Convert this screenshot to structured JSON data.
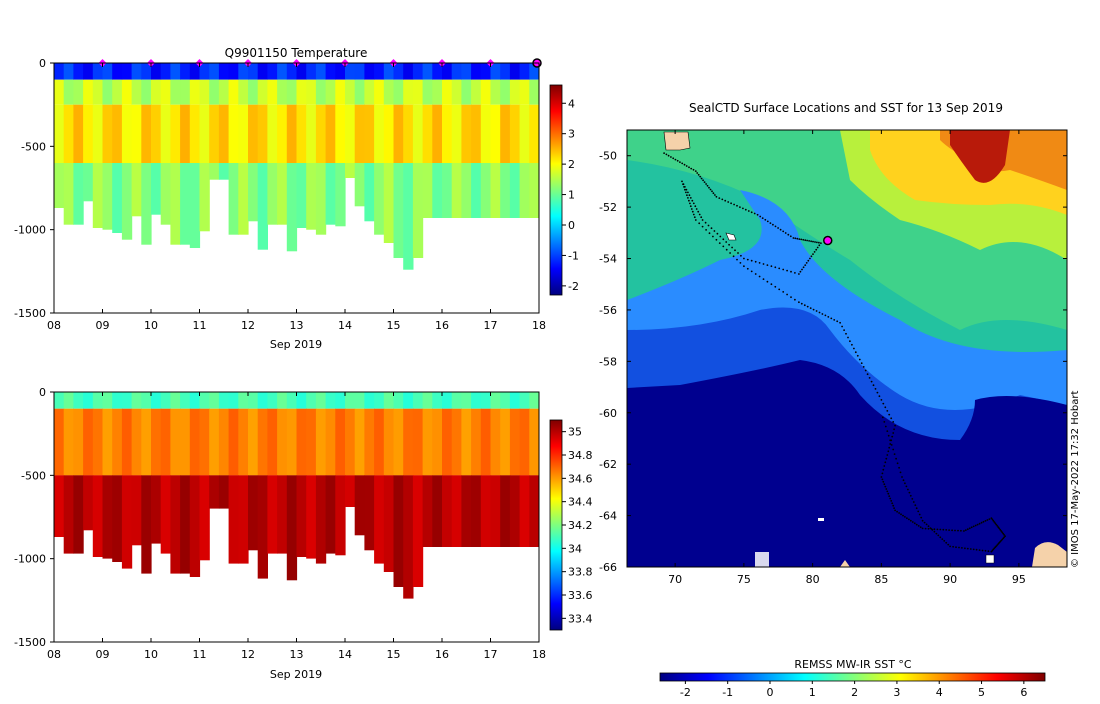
{
  "chart_data": [
    {
      "type": "heatmap",
      "title": "Q9901150  Temperature",
      "xlabel": "Sep 2019",
      "ylabel": "",
      "x_ticks": [
        "08",
        "09",
        "10",
        "11",
        "12",
        "13",
        "14",
        "15",
        "16",
        "17",
        "18"
      ],
      "x_range": [
        8,
        18
      ],
      "y_ticks": [
        "0",
        "-500",
        "-1000",
        "-1500"
      ],
      "ylim": [
        -1500,
        0
      ],
      "colorbar": {
        "ticks": [
          "4",
          "3",
          "2",
          "1",
          "0",
          "-1",
          "-2"
        ],
        "range": [
          -2.3,
          4.6
        ]
      },
      "profile_markers_day": [
        9,
        10,
        11,
        12,
        13,
        14,
        15,
        16,
        17
      ],
      "current_position_day": 18,
      "profile_days": [
        8.0,
        8.2,
        8.4,
        8.6,
        8.8,
        9.0,
        9.2,
        9.4,
        9.6,
        9.8,
        10.0,
        10.2,
        10.4,
        10.6,
        10.8,
        11.0,
        11.2,
        11.4,
        11.6,
        11.8,
        12.0,
        12.2,
        12.4,
        12.6,
        12.8,
        13.0,
        13.2,
        13.4,
        13.6,
        13.8,
        14.0,
        14.2,
        14.4,
        14.6,
        14.8,
        15.0,
        15.2,
        15.4,
        15.6,
        15.8,
        16.0,
        16.2,
        16.4,
        16.6,
        16.8,
        17.0,
        17.2,
        17.4,
        17.6,
        17.8
      ],
      "max_depth_m": [
        -870,
        -970,
        -970,
        -830,
        -990,
        -1000,
        -1020,
        -1060,
        -920,
        -1090,
        -910,
        -970,
        -1090,
        -1090,
        -1110,
        -1010,
        -700,
        -700,
        -1030,
        -1030,
        -950,
        -1120,
        -970,
        -970,
        -1130,
        -990,
        -1000,
        -1030,
        -970,
        -980,
        -690,
        -860,
        -950,
        -1030,
        -1080,
        -1170,
        -1240,
        -1170,
        -930,
        -930,
        -930,
        -930,
        -930,
        -930,
        -930,
        -930,
        -930,
        -930,
        -930,
        -930
      ],
      "value_unit": "°C",
      "layers": [
        {
          "depth_top": 0,
          "depth_bottom": -100,
          "value": -1.2
        },
        {
          "depth_top": -100,
          "depth_bottom": -250,
          "value": 1.6
        },
        {
          "depth_top": -250,
          "depth_bottom": -600,
          "value": 2.2
        },
        {
          "depth_top": -600,
          "depth_bottom": -1250,
          "value": 1.2
        }
      ]
    },
    {
      "type": "heatmap",
      "title": "",
      "xlabel": "Sep 2019",
      "ylabel": "",
      "x_ticks": [
        "08",
        "09",
        "10",
        "11",
        "12",
        "13",
        "14",
        "15",
        "16",
        "17",
        "18"
      ],
      "x_range": [
        8,
        18
      ],
      "y_ticks": [
        "0",
        "-500",
        "-1000",
        "-1500"
      ],
      "ylim": [
        -1500,
        0
      ],
      "colorbar": {
        "ticks": [
          "35",
          "34.8",
          "34.6",
          "34.4",
          "34.2",
          "34",
          "33.8",
          "33.6",
          "33.4"
        ],
        "range": [
          33.3,
          35.1
        ]
      },
      "layers": [
        {
          "depth_top": 0,
          "depth_bottom": -100,
          "value": 34.1
        },
        {
          "depth_top": -100,
          "depth_bottom": -500,
          "value": 34.65
        },
        {
          "depth_top": -500,
          "depth_bottom": -1250,
          "value": 35.0
        }
      ]
    },
    {
      "type": "map",
      "title": "SealCTD Surface Locations and SST for 13 Sep 2019",
      "lon_ticks": [
        "70",
        "75",
        "80",
        "85",
        "90",
        "95"
      ],
      "lon_range": [
        66.5,
        98.5
      ],
      "lat_ticks": [
        "-50",
        "-52",
        "-54",
        "-56",
        "-58",
        "-60",
        "-62",
        "-64",
        "-66"
      ],
      "lat_range": [
        -66,
        -49
      ],
      "current_position": {
        "lon": 81.1,
        "lat": -53.3
      },
      "track": [
        [
          69.2,
          -49.9
        ],
        [
          71.5,
          -50.6
        ],
        [
          73,
          -51.6
        ],
        [
          76,
          -52.3
        ],
        [
          78.6,
          -53.2
        ],
        [
          80.6,
          -53.4
        ],
        [
          79,
          -54.6
        ],
        [
          75,
          -54
        ],
        [
          72,
          -52.5
        ],
        [
          70.5,
          -51
        ],
        [
          71.5,
          -52.5
        ],
        [
          75,
          -54.3
        ],
        [
          79,
          -55.7
        ],
        [
          82,
          -56.5
        ],
        [
          84,
          -58.5
        ],
        [
          86,
          -60.5
        ],
        [
          85,
          -62.5
        ],
        [
          86,
          -63.8
        ],
        [
          88,
          -64.5
        ],
        [
          91,
          -64.6
        ],
        [
          93,
          -64.1
        ],
        [
          94,
          -64.8
        ],
        [
          93,
          -65.4
        ],
        [
          90,
          -65.2
        ],
        [
          88,
          -64.2
        ],
        [
          86.5,
          -62.5
        ],
        [
          85,
          -60
        ]
      ],
      "colorbar": {
        "label": "REMSS MW-IR SST °C",
        "ticks": [
          "-2",
          "-1",
          "0",
          "1",
          "2",
          "3",
          "4",
          "5",
          "6"
        ],
        "range": [
          -2.6,
          6.5
        ]
      },
      "credit": "© IMOS 17-May-2022 17:32 Hobart"
    }
  ],
  "colors": {
    "jet": [
      "#00007f",
      "#0000ff",
      "#007fff",
      "#00ffff",
      "#7fff7f",
      "#ffff00",
      "#ff7f00",
      "#ff0000",
      "#7f0000"
    ],
    "sea_ice": "#00008f",
    "land": "#f5d2aa",
    "marker": "#ff00ff"
  }
}
